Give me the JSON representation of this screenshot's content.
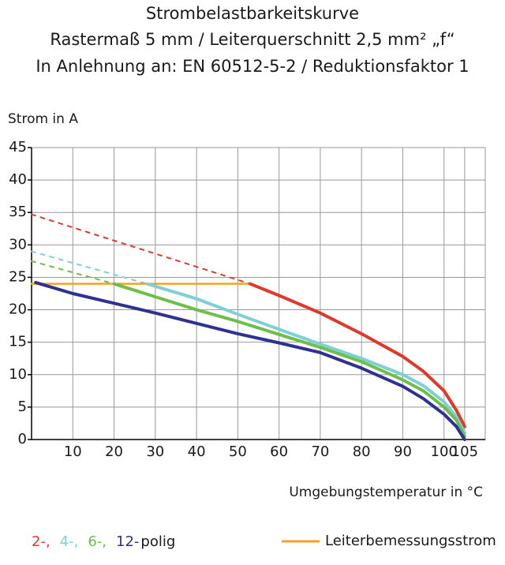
{
  "chart_data": {
    "type": "line",
    "title": "Strombelastbarkeitskurve",
    "subtitle": [
      "Rastermaß 5 mm / Leiterquerschnitt 2,5 mm² „f“",
      "In Anlehnung an: EN 60512-5-2 / Reduktionsfaktor 1"
    ],
    "y_label": "Strom in A",
    "x_label": "Umgebungstemperatur in °C",
    "xlim": [
      0,
      110
    ],
    "xticks": [
      10,
      20,
      30,
      40,
      50,
      60,
      70,
      80,
      90,
      100,
      105
    ],
    "ylim": [
      0,
      45
    ],
    "yticks": [
      0,
      5,
      10,
      15,
      20,
      25,
      30,
      35,
      40,
      45
    ],
    "grid": true,
    "legend_suffix": "polig",
    "series": [
      {
        "name": "2-,",
        "color": "#e0392b",
        "dash_x": [
          0,
          53
        ],
        "dash_values": [
          34.7,
          24
        ],
        "x": [
          53,
          60,
          70,
          80,
          90,
          95,
          100,
          103,
          105
        ],
        "values": [
          24,
          22.2,
          19.5,
          16.3,
          12.8,
          10.5,
          7.5,
          4.5,
          2
        ]
      },
      {
        "name": "4-,",
        "color": "#7fcfd6",
        "dash_x": [
          0,
          28
        ],
        "dash_values": [
          29,
          24
        ],
        "x": [
          28,
          40,
          50,
          60,
          70,
          80,
          90,
          95,
          100,
          103,
          105
        ],
        "values": [
          24,
          21.7,
          19.3,
          17,
          14.7,
          12.5,
          10,
          8.3,
          5.8,
          3.5,
          1
        ]
      },
      {
        "name": "6-,",
        "color": "#6cc04a",
        "dash_x": [
          0,
          20
        ],
        "dash_values": [
          27.5,
          24
        ],
        "x": [
          20,
          30,
          40,
          50,
          60,
          70,
          80,
          90,
          95,
          100,
          103,
          105
        ],
        "values": [
          24,
          22,
          20,
          18.2,
          16.2,
          14.2,
          12,
          9.2,
          7.5,
          5,
          3,
          0.5
        ]
      },
      {
        "name": "12-",
        "color": "#2e3192",
        "x": [
          1,
          10,
          20,
          30,
          40,
          50,
          60,
          70,
          80,
          90,
          95,
          100,
          103,
          105
        ],
        "values": [
          24.2,
          22.5,
          21,
          19.5,
          17.9,
          16.3,
          14.9,
          13.4,
          11,
          8.2,
          6.3,
          3.9,
          2,
          0
        ]
      }
    ],
    "reference_line": {
      "name": "Leiterbemessungsstrom",
      "color": "#f7a021",
      "x": [
        0,
        53
      ],
      "values": [
        24,
        24
      ]
    }
  }
}
